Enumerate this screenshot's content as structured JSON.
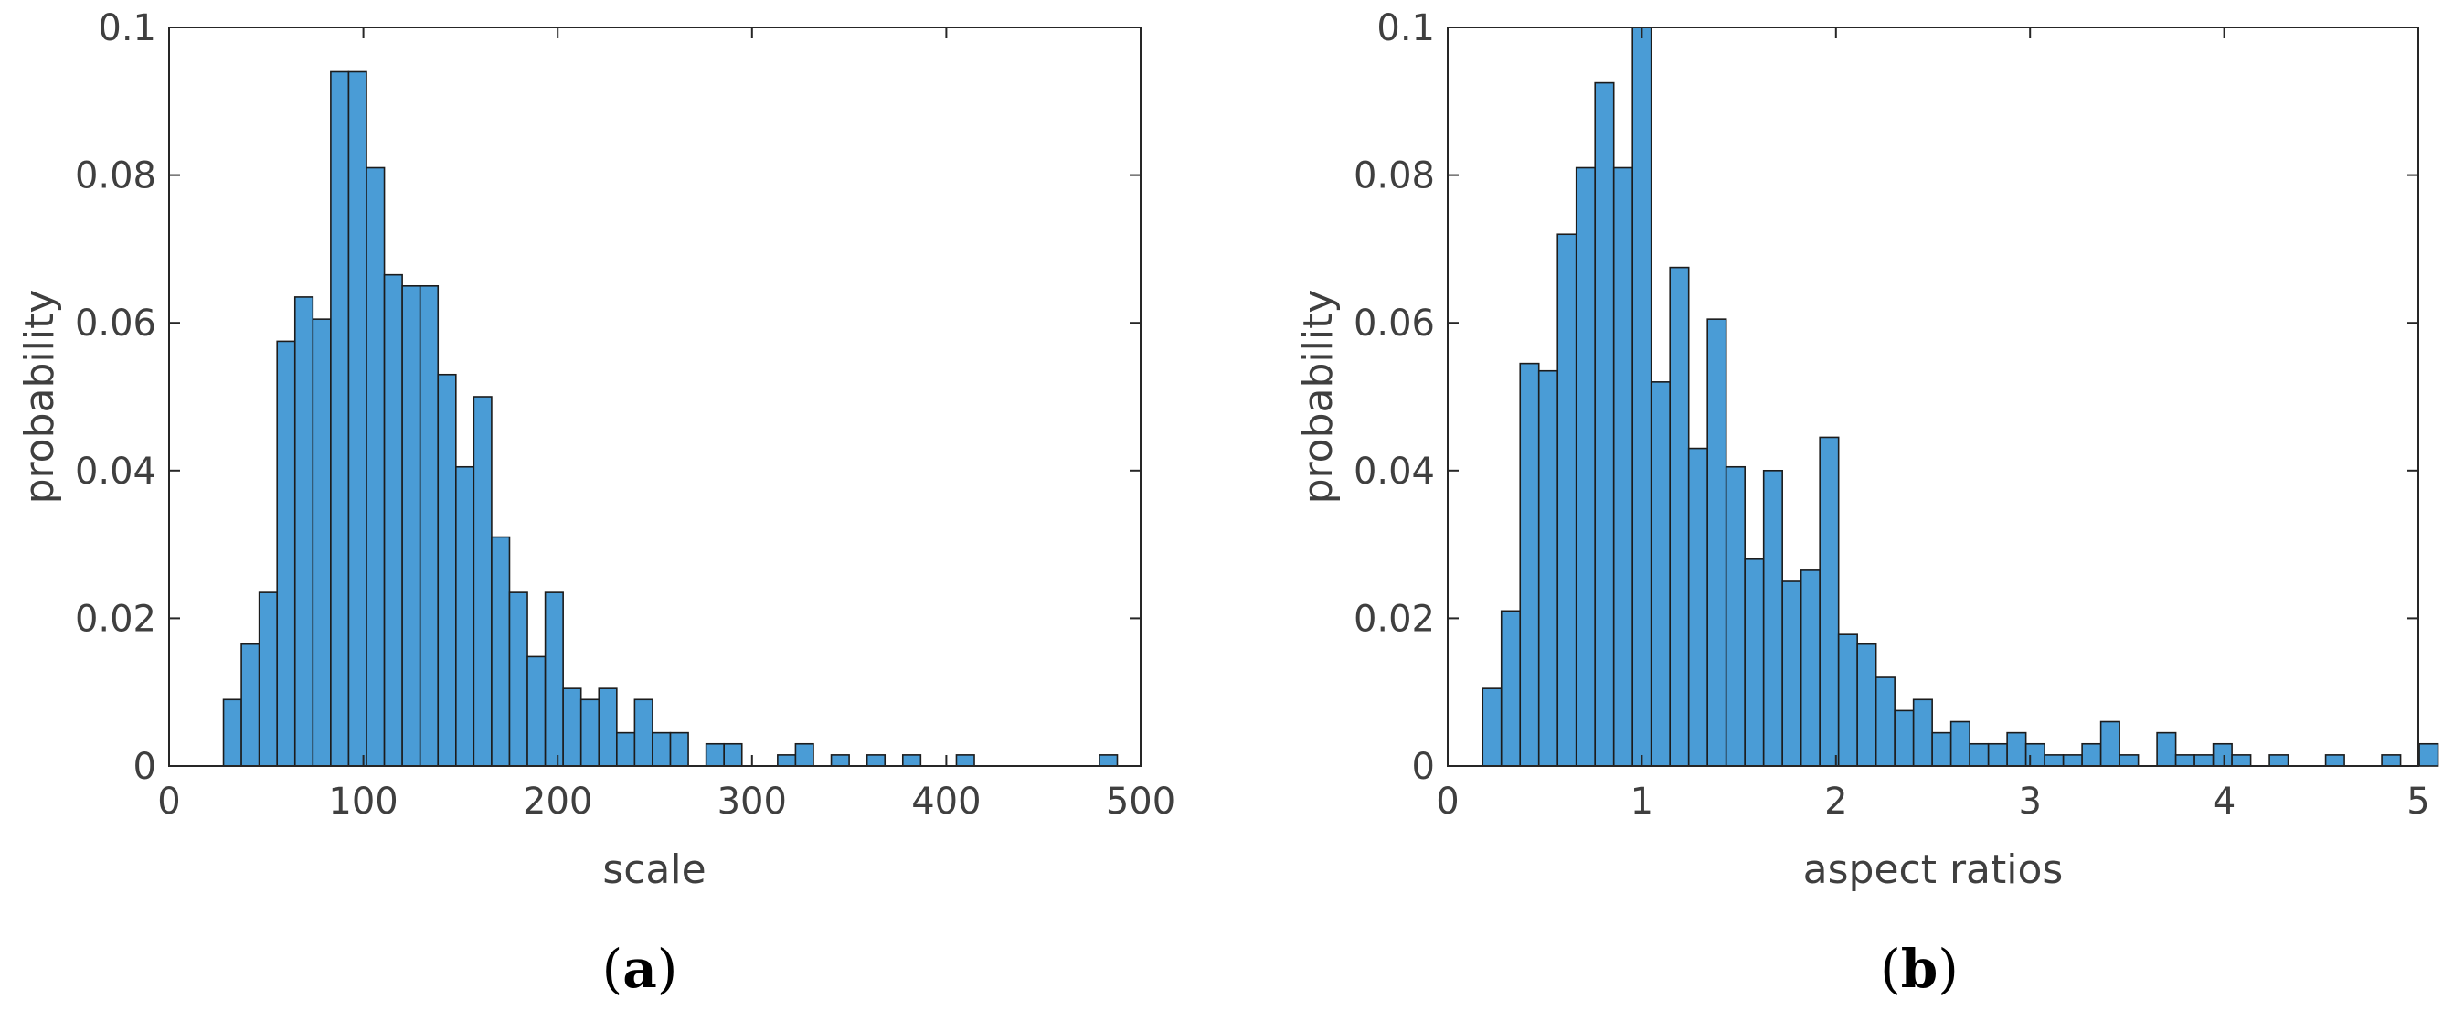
{
  "colors": {
    "bar_fill": "#4a9cd6",
    "bar_edge": "#1c1c1c",
    "axis": "#262626",
    "text": "#3f3f3f"
  },
  "chart_data": [
    {
      "type": "bar",
      "subtype": "histogram",
      "panel_label": "a",
      "xlabel": "scale",
      "ylabel": "probability",
      "xlim": [
        0,
        500
      ],
      "ylim": [
        0,
        0.1
      ],
      "xticks": [
        0,
        100,
        200,
        300,
        400,
        500
      ],
      "xtick_labels": [
        "0",
        "100",
        "200",
        "300",
        "400",
        "500"
      ],
      "yticks": [
        0,
        0.02,
        0.04,
        0.06,
        0.08,
        0.1
      ],
      "ytick_labels": [
        "0",
        "0.02",
        "0.04",
        "0.06",
        "0.08",
        "0.1"
      ],
      "grid": false,
      "bin_width": 9.2,
      "bin_start": 28,
      "values": [
        0.009,
        0.0165,
        0.0235,
        0.0575,
        0.0635,
        0.0605,
        0.094,
        0.094,
        0.081,
        0.0665,
        0.065,
        0.065,
        0.053,
        0.0405,
        0.05,
        0.031,
        0.0235,
        0.0148,
        0.0235,
        0.0105,
        0.009,
        0.0105,
        0.0045,
        0.009,
        0.0045,
        0.0045,
        0,
        0.003,
        0.003,
        0,
        0,
        0.0015,
        0.003,
        0,
        0.0015,
        0,
        0.0015,
        0,
        0.0015,
        0,
        0,
        0.0015,
        0,
        0,
        0,
        0,
        0,
        0,
        0,
        0.0015
      ]
    },
    {
      "type": "bar",
      "subtype": "histogram",
      "panel_label": "b",
      "xlabel": "aspect ratios",
      "ylabel": "probability",
      "xlim": [
        0,
        5
      ],
      "ylim": [
        0,
        0.1
      ],
      "xticks": [
        0,
        1,
        2,
        3,
        4,
        5
      ],
      "xtick_labels": [
        "0",
        "1",
        "2",
        "3",
        "4",
        "5"
      ],
      "yticks": [
        0,
        0.02,
        0.04,
        0.06,
        0.08,
        0.1
      ],
      "ytick_labels": [
        "0",
        "0.02",
        "0.04",
        "0.06",
        "0.08",
        "0.1"
      ],
      "grid": false,
      "bin_width": 0.0965,
      "bin_start": 0.18,
      "values": [
        0.0105,
        0.021,
        0.0545,
        0.0535,
        0.072,
        0.081,
        0.0925,
        0.081,
        0.1,
        0.052,
        0.0675,
        0.043,
        0.0605,
        0.0405,
        0.028,
        0.04,
        0.025,
        0.0265,
        0.0445,
        0.0178,
        0.0165,
        0.012,
        0.0075,
        0.009,
        0.0045,
        0.006,
        0.003,
        0.003,
        0.0045,
        0.003,
        0.0015,
        0.0015,
        0.003,
        0.006,
        0.0015,
        0,
        0.0045,
        0.0015,
        0.0015,
        0.003,
        0.0015,
        0,
        0.0015,
        0,
        0,
        0.0015,
        0,
        0,
        0.0015,
        0,
        0.003
      ]
    }
  ]
}
